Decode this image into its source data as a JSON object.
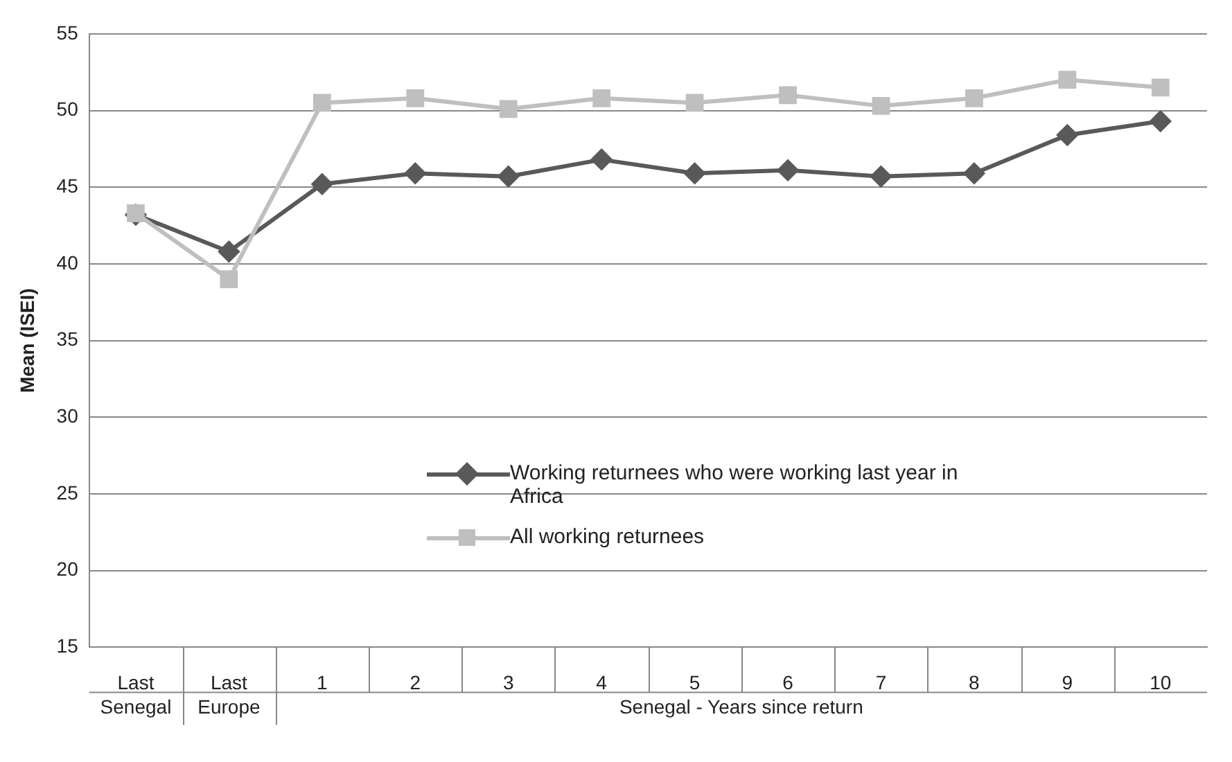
{
  "chart_data": {
    "type": "line",
    "ylabel": "Mean (ISEI)",
    "categories": [
      "Last",
      "Last",
      "1",
      "2",
      "3",
      "4",
      "5",
      "6",
      "7",
      "8",
      "9",
      "10"
    ],
    "annotations": [
      "Senegal",
      "Europe",
      "Senegal - Years since return"
    ],
    "series": [
      {
        "name": "Working returnees who were working last year in Africa",
        "color": "#595959",
        "marker": "diamond",
        "values": [
          43.2,
          40.8,
          45.2,
          45.9,
          45.7,
          46.8,
          45.9,
          46.1,
          45.7,
          45.9,
          48.4,
          49.3
        ]
      },
      {
        "name": "All working returnees",
        "color": "#bfbfbf",
        "marker": "square",
        "values": [
          43.3,
          39.0,
          50.5,
          50.8,
          50.1,
          50.8,
          50.5,
          51.0,
          50.3,
          50.8,
          52.0,
          51.5
        ]
      }
    ],
    "ylim": [
      15,
      55
    ],
    "yticks": [
      15,
      20,
      25,
      30,
      35,
      40,
      45,
      50,
      55
    ],
    "grid": "y",
    "legend": "left"
  }
}
